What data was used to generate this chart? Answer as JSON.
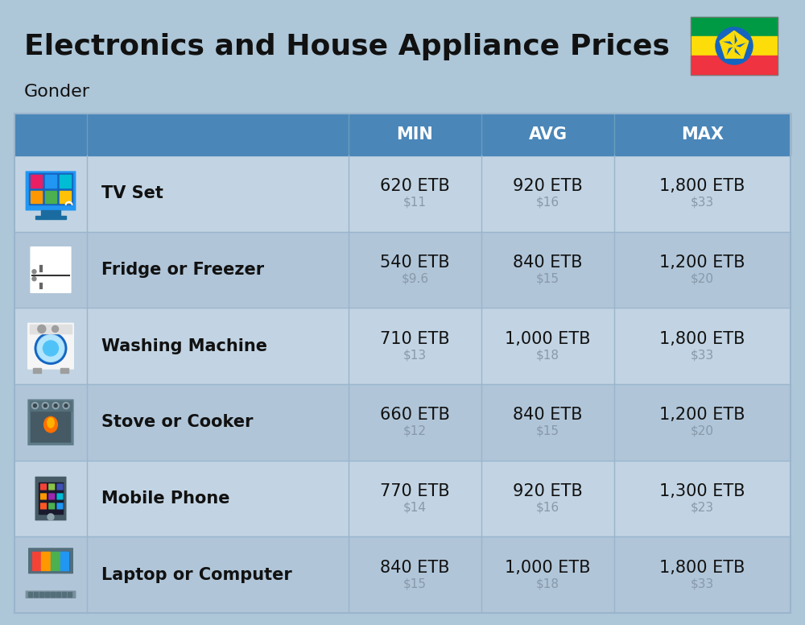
{
  "title": "Electronics and House Appliance Prices",
  "subtitle": "Gonder",
  "background_color": "#adc6d8",
  "header_color": "#4a86b8",
  "header_text_color": "#ffffff",
  "row_colors": [
    "#c2d4e3",
    "#b0c5d8"
  ],
  "divider_color": "#9ab5cc",
  "columns": [
    "MIN",
    "AVG",
    "MAX"
  ],
  "items": [
    {
      "name": "TV Set",
      "min_etb": "620 ETB",
      "min_usd": "$11",
      "avg_etb": "920 ETB",
      "avg_usd": "$16",
      "max_etb": "1,800 ETB",
      "max_usd": "$33"
    },
    {
      "name": "Fridge or Freezer",
      "min_etb": "540 ETB",
      "min_usd": "$9.6",
      "avg_etb": "840 ETB",
      "avg_usd": "$15",
      "max_etb": "1,200 ETB",
      "max_usd": "$20"
    },
    {
      "name": "Washing Machine",
      "min_etb": "710 ETB",
      "min_usd": "$13",
      "avg_etb": "1,000 ETB",
      "avg_usd": "$18",
      "max_etb": "1,800 ETB",
      "max_usd": "$33"
    },
    {
      "name": "Stove or Cooker",
      "min_etb": "660 ETB",
      "min_usd": "$12",
      "avg_etb": "840 ETB",
      "avg_usd": "$15",
      "max_etb": "1,200 ETB",
      "max_usd": "$20"
    },
    {
      "name": "Mobile Phone",
      "min_etb": "770 ETB",
      "min_usd": "$14",
      "avg_etb": "920 ETB",
      "avg_usd": "$16",
      "max_etb": "1,300 ETB",
      "max_usd": "$23"
    },
    {
      "name": "Laptop or Computer",
      "min_etb": "840 ETB",
      "min_usd": "$15",
      "avg_etb": "1,000 ETB",
      "avg_usd": "$18",
      "max_etb": "1,800 ETB",
      "max_usd": "$33"
    }
  ],
  "title_fontsize": 26,
  "subtitle_fontsize": 16,
  "header_fontsize": 15,
  "item_name_fontsize": 15,
  "value_fontsize": 15,
  "usd_fontsize": 11,
  "usd_color": "#8899aa",
  "text_color": "#111111",
  "flag_green": "#009a44",
  "flag_yellow": "#FCDD09",
  "flag_red": "#ef3340",
  "flag_blue": "#1565c0"
}
